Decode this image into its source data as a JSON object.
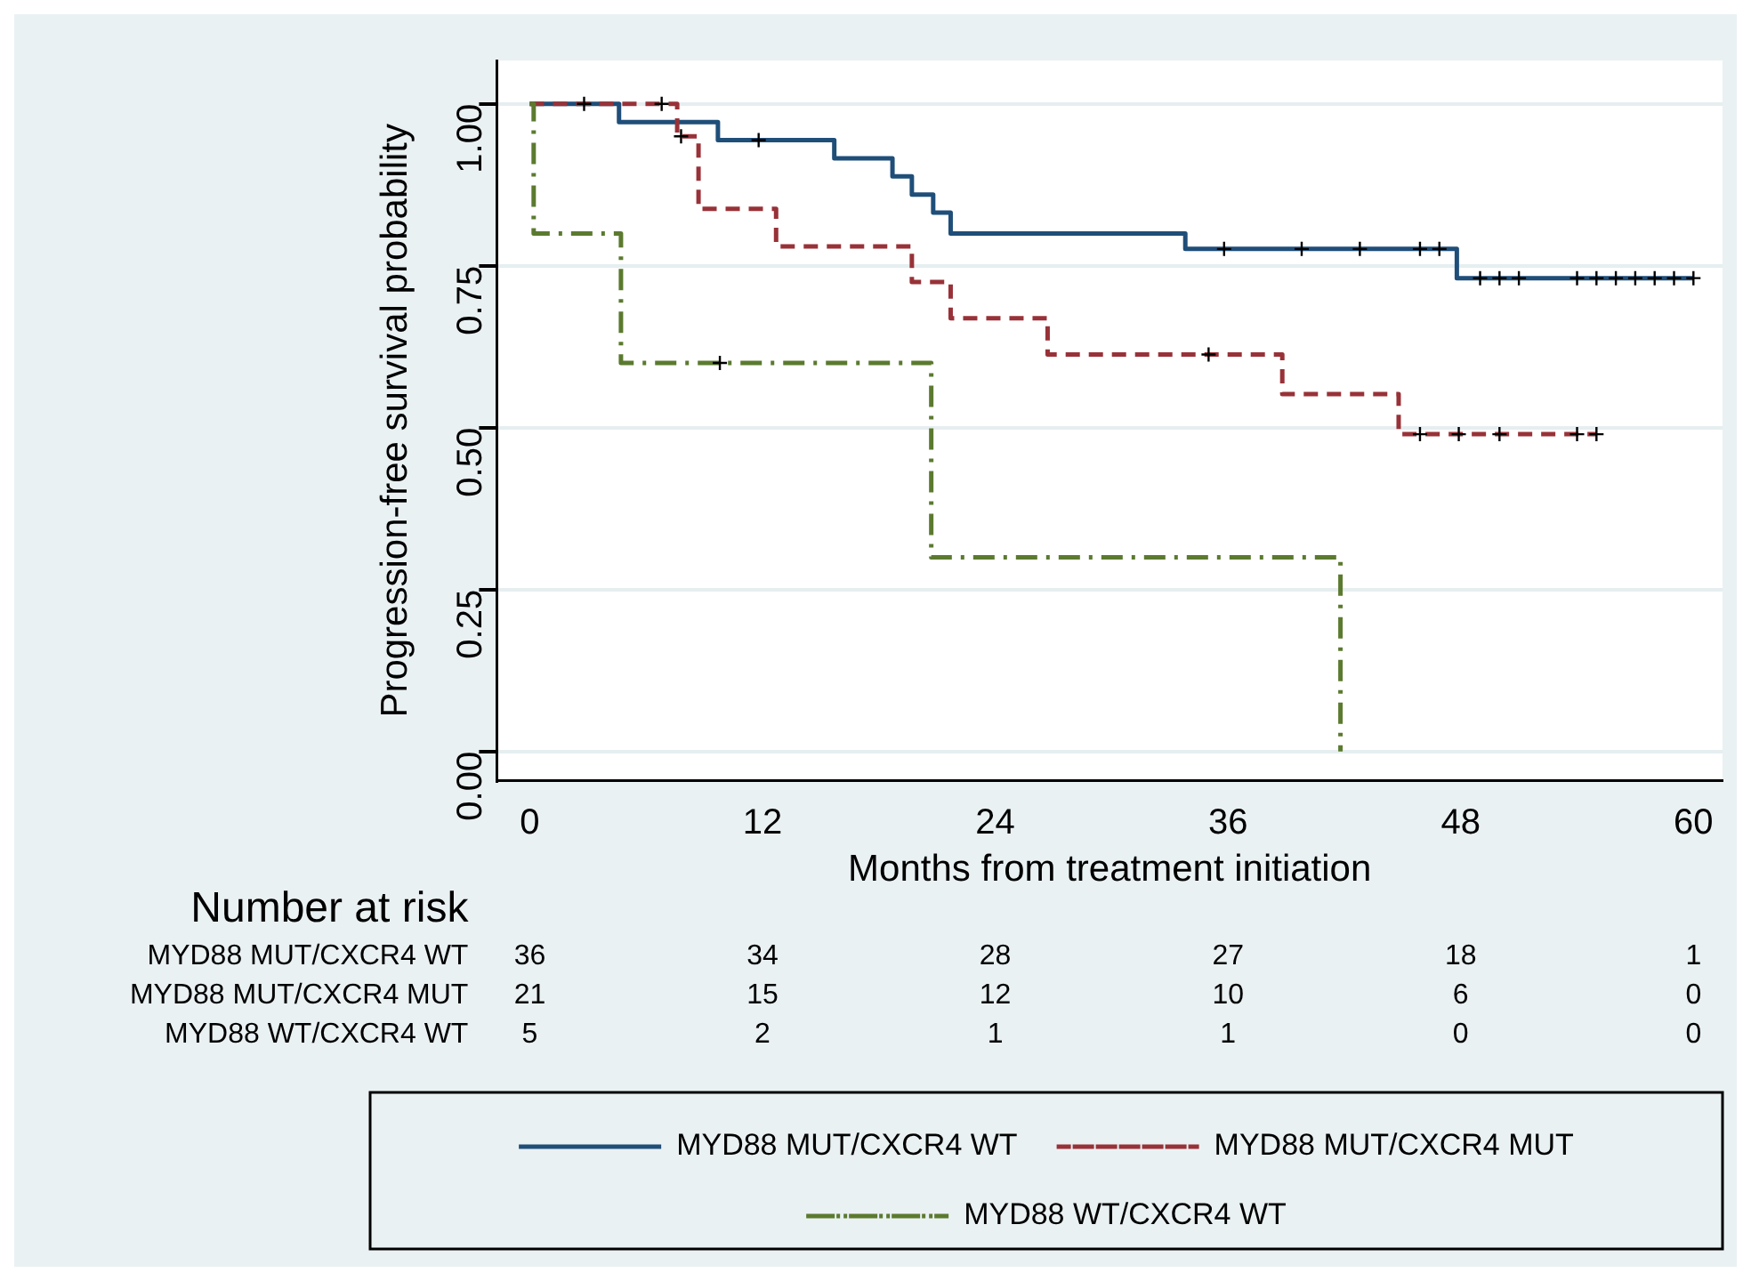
{
  "chart_data": {
    "type": "step",
    "xlabel": "Months from treatment initiation",
    "ylabel": "Progression-free survival probability",
    "xlim": [
      -1.7,
      61.5
    ],
    "xticks": [
      0,
      12,
      24,
      36,
      48,
      60
    ],
    "ylim": [
      -0.045,
      1.067
    ],
    "yticks": [
      {
        "value": 0,
        "label": "0.00"
      },
      {
        "value": 0.25,
        "label": "0.25"
      },
      {
        "value": 0.5,
        "label": "0.50"
      },
      {
        "value": 0.75,
        "label": "0.75"
      },
      {
        "value": 1,
        "label": "1.00"
      }
    ],
    "grid": "y",
    "legend": "bottom",
    "series": [
      {
        "name": "MYD88 MUT/CXCR4 WT",
        "color": "#1f4e79",
        "line_style": "solid",
        "x": [
          0,
          4.6,
          9.7,
          15.7,
          18.7,
          19.7,
          20.8,
          21.7,
          33.8,
          47.8,
          60
        ],
        "values": [
          1,
          0.972,
          0.944,
          0.916,
          0.888,
          0.86,
          0.832,
          0.8,
          0.776,
          0.731,
          0.731
        ]
      },
      {
        "name": "MYD88 MUT/CXCR4 MUT",
        "color": "#983238",
        "line_style": "dashed",
        "x": [
          0,
          7.6,
          8.7,
          12.7,
          19.7,
          21.7,
          26.7,
          38.8,
          44.8,
          55
        ],
        "values": [
          1,
          0.95,
          0.838,
          0.78,
          0.725,
          0.669,
          0.613,
          0.552,
          0.49,
          0.49
        ]
      },
      {
        "name": "MYD88 WT/CXCR4 WT",
        "color": "#5b7a2f",
        "line_style": "dashdot",
        "x": [
          0,
          0.2,
          4.7,
          20.7,
          41.8
        ],
        "values": [
          1,
          0.8,
          0.6,
          0.3,
          0
        ]
      },
      {
        "type": "scatter",
        "marker": "cross",
        "color": "#000000",
        "x": [
          2.8,
          11.8,
          35.8,
          39.8,
          42.8,
          45.9,
          46.9,
          49,
          50,
          51,
          54,
          55,
          56,
          57,
          58,
          59,
          60
        ],
        "values": [
          1,
          0.944,
          0.776,
          0.776,
          0.776,
          0.776,
          0.776,
          0.731,
          0.731,
          0.731,
          0.731,
          0.731,
          0.731,
          0.731,
          0.731,
          0.731,
          0.731
        ]
      },
      {
        "type": "scatter",
        "marker": "cross",
        "color": "#000000",
        "x": [
          6.8,
          7.8,
          35,
          45.9,
          47.9,
          50,
          54,
          55
        ],
        "values": [
          1,
          0.95,
          0.613,
          0.49,
          0.49,
          0.49,
          0.49,
          0.49
        ]
      },
      {
        "type": "scatter",
        "marker": "cross",
        "color": "#000000",
        "x": [
          9.8
        ],
        "values": [
          0.6
        ]
      }
    ],
    "annotations": [
      "Number at risk",
      "MYD88 MUT/CXCR4 WT",
      "36",
      "34",
      "28",
      "27",
      "18",
      "1",
      "MYD88 MUT/CXCR4 MUT",
      "21",
      "15",
      "12",
      "10",
      "6",
      "0",
      "MYD88 WT/CXCR4 WT",
      "5",
      "2",
      "1",
      "1",
      "0",
      "0"
    ]
  }
}
